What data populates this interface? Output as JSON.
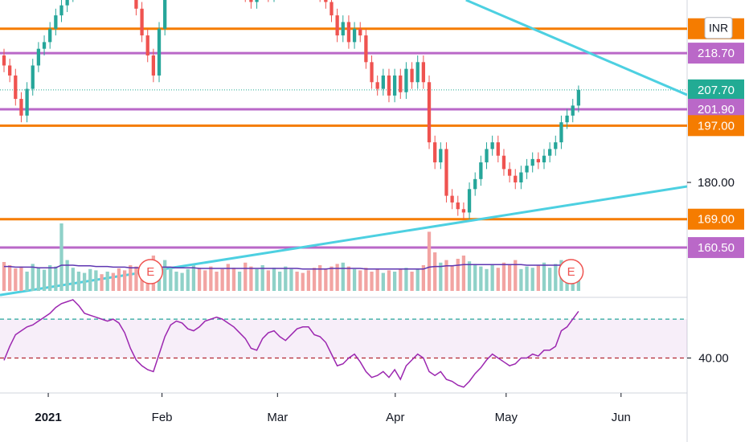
{
  "chart_data": {
    "type": "candlestick",
    "currency": "INR",
    "xlim": [
      -0.7,
      118.9
    ],
    "xticks": [
      {
        "value": 7.7,
        "label": "2021"
      },
      {
        "value": 27.5,
        "label": "Feb"
      },
      {
        "value": 47.6,
        "label": "Mar"
      },
      {
        "value": 68.1,
        "label": "Apr"
      },
      {
        "value": 87.4,
        "label": "May"
      },
      {
        "value": 107.4,
        "label": "Jun"
      }
    ],
    "ylim": [
      145.6,
      234.6
    ],
    "yticks": [
      {
        "value": 180,
        "label": "180.00"
      }
    ],
    "up_color": "#26a69a",
    "down_color": "#ef5350",
    "open": [
      218,
      215,
      212,
      205,
      200,
      208,
      215,
      220,
      222,
      226,
      230,
      233,
      236,
      238,
      240,
      242,
      244,
      246,
      245,
      247,
      244,
      242,
      240,
      238,
      232,
      224,
      218,
      212,
      226,
      238,
      242,
      245,
      248,
      250,
      252,
      250,
      248,
      246,
      244,
      242,
      240,
      238,
      240,
      236,
      234,
      237,
      238,
      236,
      240,
      242,
      244,
      246,
      244,
      242,
      240,
      238,
      236,
      234,
      230,
      224,
      228,
      222,
      226,
      224,
      216,
      210,
      208,
      212,
      206,
      212,
      207,
      214,
      210,
      216,
      210,
      192,
      186,
      190,
      176,
      174,
      172,
      171,
      178,
      181,
      186,
      190,
      192,
      188,
      184,
      182,
      180,
      183,
      185,
      187,
      186,
      188,
      190,
      192,
      198,
      200,
      203
    ],
    "high": [
      220,
      217,
      214,
      207,
      210,
      217,
      222,
      224,
      228,
      232,
      235,
      238,
      240,
      242,
      244,
      246,
      248,
      248,
      249,
      249,
      246,
      244,
      242,
      240,
      234,
      226,
      220,
      228,
      240,
      244,
      247,
      250,
      252,
      254,
      254,
      252,
      250,
      248,
      246,
      244,
      242,
      242,
      242,
      238,
      239,
      240,
      240,
      242,
      244,
      246,
      248,
      248,
      246,
      244,
      242,
      240,
      238,
      236,
      232,
      230,
      230,
      228,
      228,
      226,
      218,
      212,
      214,
      214,
      214,
      214,
      216,
      216,
      218,
      218,
      212,
      194,
      192,
      192,
      178,
      176,
      174,
      180,
      183,
      188,
      192,
      194,
      194,
      190,
      186,
      184,
      185,
      187,
      189,
      189,
      190,
      192,
      194,
      200,
      202,
      205,
      209
    ],
    "low": [
      213,
      210,
      203,
      198,
      198,
      206,
      213,
      218,
      220,
      224,
      228,
      231,
      234,
      236,
      238,
      240,
      242,
      243,
      243,
      242,
      240,
      238,
      236,
      230,
      222,
      216,
      210,
      210,
      224,
      236,
      240,
      243,
      246,
      248,
      248,
      246,
      244,
      242,
      240,
      238,
      236,
      236,
      234,
      232,
      232,
      235,
      234,
      234,
      238,
      240,
      242,
      242,
      240,
      238,
      236,
      234,
      232,
      228,
      222,
      222,
      220,
      220,
      222,
      214,
      208,
      206,
      206,
      204,
      204,
      205,
      205,
      208,
      208,
      208,
      190,
      184,
      184,
      174,
      172,
      170,
      169,
      169,
      176,
      179,
      184,
      188,
      186,
      182,
      180,
      178,
      178,
      181,
      183,
      184,
      184,
      186,
      188,
      190,
      196,
      198,
      201
    ],
    "close": [
      215,
      212,
      205,
      200,
      208,
      215,
      220,
      222,
      226,
      230,
      233,
      236,
      238,
      240,
      242,
      244,
      246,
      245,
      247,
      244,
      242,
      240,
      238,
      232,
      224,
      218,
      212,
      226,
      238,
      242,
      245,
      248,
      250,
      252,
      250,
      248,
      246,
      244,
      242,
      240,
      238,
      240,
      236,
      234,
      237,
      238,
      236,
      240,
      242,
      244,
      246,
      244,
      242,
      240,
      238,
      236,
      234,
      230,
      224,
      228,
      222,
      226,
      224,
      216,
      210,
      208,
      212,
      206,
      212,
      207,
      214,
      210,
      216,
      210,
      192,
      186,
      190,
      176,
      174,
      172,
      171,
      178,
      181,
      186,
      190,
      192,
      188,
      184,
      182,
      180,
      183,
      185,
      187,
      186,
      188,
      190,
      192,
      198,
      200,
      203,
      207.7
    ],
    "volume": [
      45,
      40,
      35,
      38,
      30,
      42,
      36,
      33,
      40,
      38,
      105,
      48,
      36,
      30,
      28,
      34,
      32,
      26,
      30,
      28,
      35,
      32,
      40,
      38,
      30,
      45,
      55,
      42,
      48,
      35,
      30,
      28,
      34,
      40,
      36,
      32,
      38,
      30,
      34,
      42,
      36,
      30,
      44,
      38,
      34,
      40,
      32,
      36,
      30,
      38,
      34,
      30,
      28,
      32,
      36,
      40,
      34,
      38,
      42,
      44,
      38,
      34,
      32,
      36,
      30,
      34,
      28,
      32,
      30,
      34,
      36,
      30,
      34,
      40,
      92,
      60,
      44,
      48,
      40,
      50,
      55,
      46,
      42,
      38,
      34,
      40,
      36,
      44,
      40,
      48,
      34,
      38,
      36,
      40,
      44,
      36,
      42,
      48,
      38,
      34,
      30
    ],
    "volume_ma": [
      38,
      38,
      37,
      37,
      37,
      37,
      36,
      36,
      36,
      36,
      40,
      40,
      40,
      39,
      39,
      39,
      38,
      38,
      38,
      37,
      37,
      37,
      36,
      36,
      36,
      37,
      37,
      37,
      37,
      37,
      36,
      36,
      36,
      36,
      35,
      35,
      35,
      35,
      35,
      35,
      35,
      35,
      35,
      35,
      35,
      35,
      35,
      35,
      35,
      35,
      35,
      35,
      34,
      34,
      34,
      34,
      34,
      35,
      35,
      35,
      35,
      35,
      35,
      34,
      34,
      34,
      34,
      34,
      34,
      34,
      34,
      34,
      34,
      34,
      37,
      38,
      38,
      39,
      39,
      40,
      41,
      41,
      41,
      41,
      41,
      41,
      41,
      41,
      41,
      41,
      41,
      40,
      40,
      40,
      40,
      40,
      40,
      40,
      40,
      39,
      39
    ],
    "volume_ylim": [
      0,
      110
    ],
    "volume_up_color": "#8fd1c8",
    "volume_down_color": "#f2a4a2",
    "volume_ma_color": "#5e35b1",
    "levels": [
      {
        "value": 226,
        "color": "#f57c00"
      },
      {
        "value": 218.7,
        "label": "218.70",
        "color": "#ba68c8"
      },
      {
        "value": 207.7,
        "label": "207.70",
        "color": "#22ab94",
        "style": "dotted"
      },
      {
        "value": 201.9,
        "label": "201.90",
        "color": "#ba68c8"
      },
      {
        "value": 197,
        "label": "197.00",
        "color": "#f57c00"
      },
      {
        "value": 169,
        "label": "169.00",
        "color": "#f57c00"
      },
      {
        "value": 160.5,
        "label": "160.50",
        "color": "#ba68c8"
      }
    ],
    "trendlines": [
      {
        "points": [
          {
            "x": 80.4,
            "y": 234.6
          },
          {
            "x": 118.9,
            "y": 206.2
          }
        ],
        "color": "#4dd0e1"
      },
      {
        "points": [
          {
            "x": -0.7,
            "y": 146.3
          },
          {
            "x": 118.9,
            "y": 178.8
          }
        ],
        "color": "#4dd0e1"
      }
    ],
    "events": [
      {
        "index": 25.5,
        "label": "E"
      },
      {
        "index": 98.7,
        "label": "E"
      }
    ],
    "rsi": {
      "values": [
        38.8,
        46,
        52,
        54,
        56,
        57,
        59,
        61,
        63,
        66,
        68,
        69,
        70,
        67,
        63,
        62,
        61,
        60,
        59,
        60,
        58,
        53,
        45,
        39,
        36,
        34,
        33,
        42,
        51,
        57,
        59,
        58,
        55,
        54,
        56,
        59,
        60,
        61,
        60,
        58,
        56,
        53,
        50,
        45,
        44,
        50,
        53,
        54,
        51,
        49,
        52,
        55,
        56,
        56,
        52,
        51,
        48,
        42,
        36,
        37,
        40,
        42,
        38,
        33,
        30,
        31,
        33,
        30,
        34,
        29,
        36,
        39,
        42,
        40,
        33,
        31,
        33,
        29,
        28,
        26,
        25,
        28,
        32,
        35,
        39,
        42,
        40,
        38,
        36,
        37,
        40,
        40,
        42,
        41,
        44,
        44,
        46,
        54,
        56,
        60,
        64
      ],
      "ylim": [
        22,
        70.8
      ],
      "yticks": [
        {
          "value": 40,
          "label": "40.00"
        }
      ],
      "bands": [
        40,
        60
      ],
      "color": "#9c27b0"
    }
  }
}
